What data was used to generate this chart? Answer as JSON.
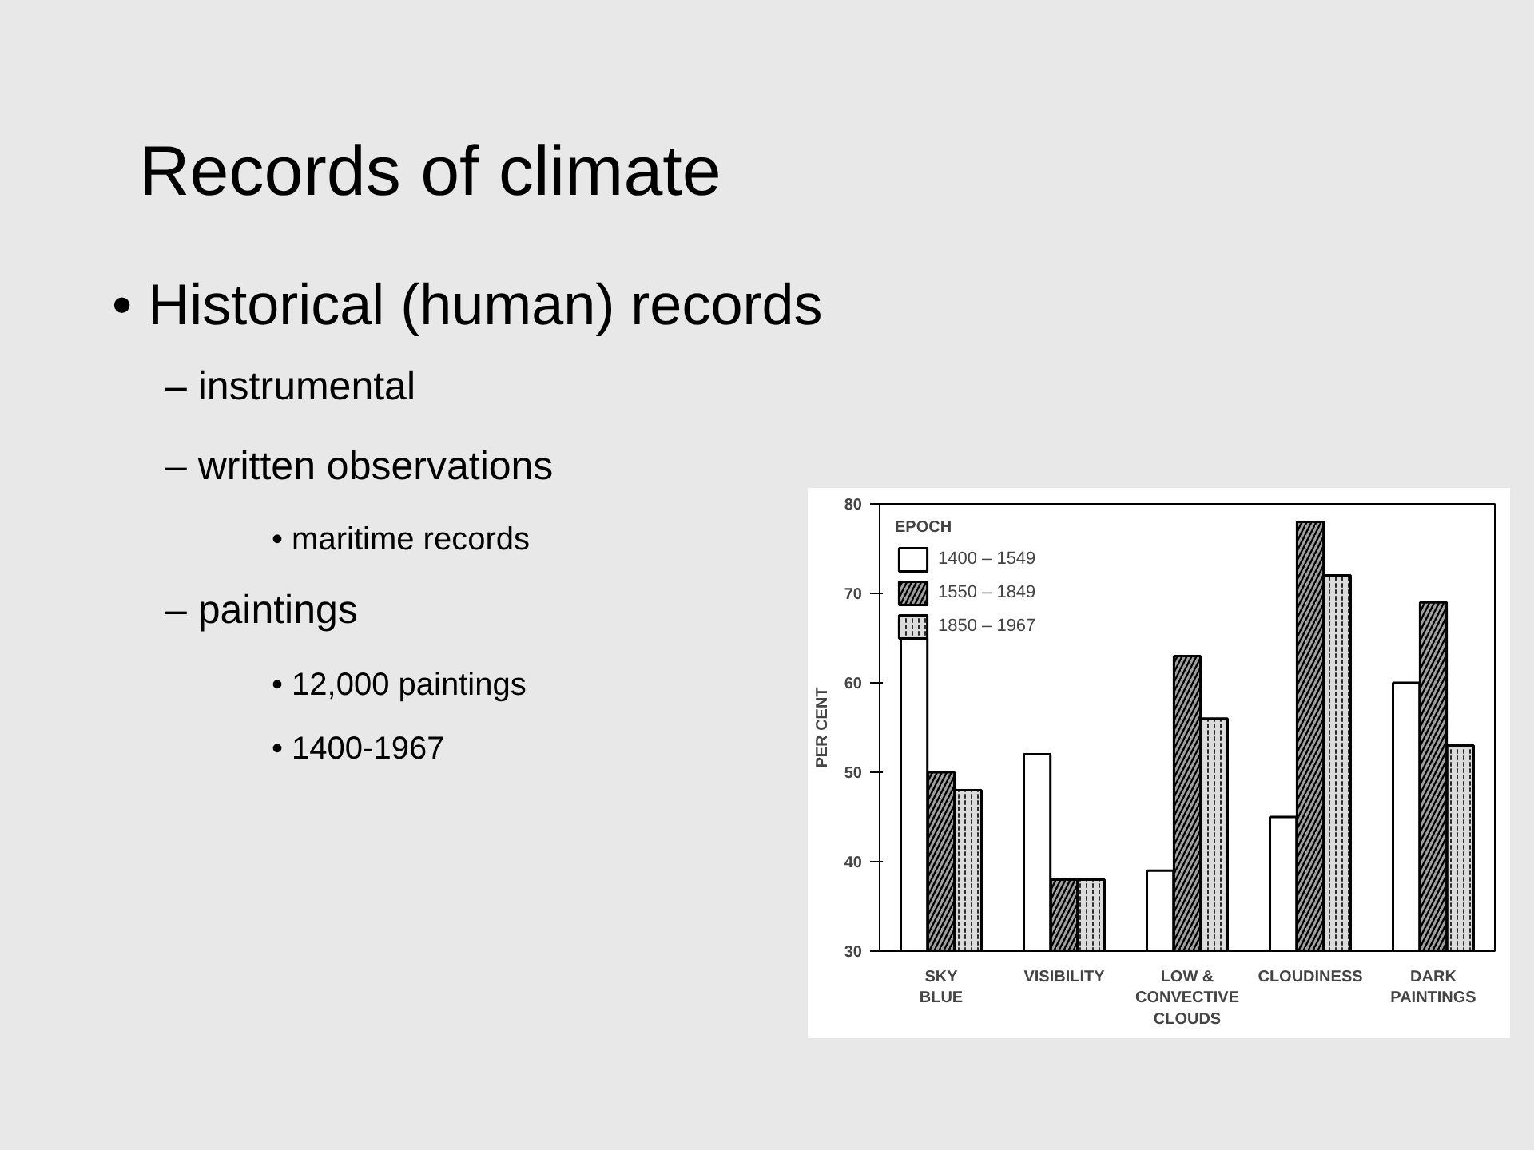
{
  "chart_data": {
    "type": "bar",
    "title": "Records of climate",
    "annotations": [
      "• Historical (human) records",
      "– instrumental",
      "– written observations",
      "• maritime records",
      "– paintings",
      "• 12,000 paintings",
      "• 1400-1967"
    ],
    "categories": [
      "SKY\nBLUE",
      "VISIBILITY",
      "LOW &\nCONVECTIVE\nCLOUDS",
      "CLOUDINESS",
      "DARK\nPAINTINGS"
    ],
    "ylabel": "PER CENT",
    "legend_title": "EPOCH",
    "series": [
      {
        "name": "1400 – 1549",
        "color": "#ffffff",
        "values": [
          65,
          52,
          39,
          45,
          60
        ]
      },
      {
        "name": "1550 – 1849",
        "color": "#a0a0a0",
        "values": [
          50,
          38,
          63,
          78,
          69
        ]
      },
      {
        "name": "1850 – 1967",
        "color": "#dcdcdc",
        "values": [
          48,
          38,
          56,
          72,
          53
        ]
      }
    ],
    "ylim": [
      30,
      80
    ],
    "yticks": [
      30,
      40,
      50,
      60,
      70,
      80
    ],
    "grid": false,
    "legend": "top left"
  }
}
